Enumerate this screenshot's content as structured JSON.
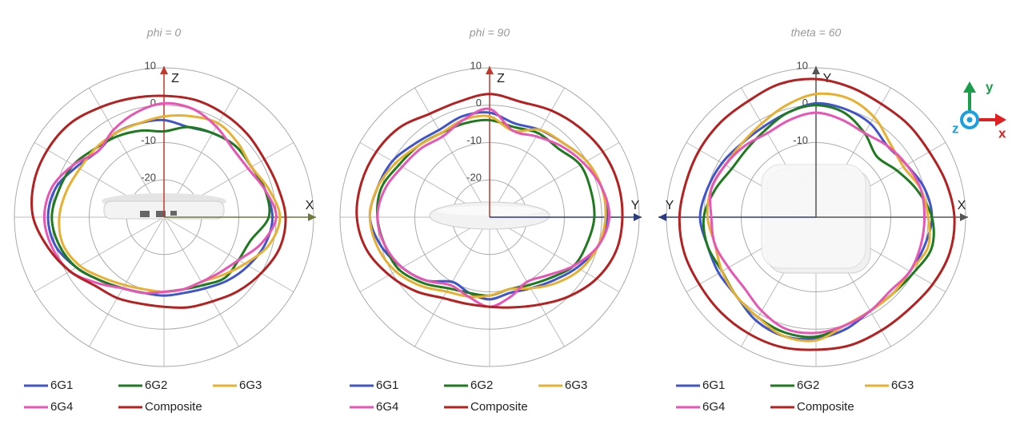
{
  "chart_data": [
    {
      "type": "polar",
      "title": "phi = 0",
      "angles": [
        0,
        15,
        30,
        45,
        60,
        75,
        90,
        105,
        120,
        135,
        150,
        165,
        180,
        195,
        210,
        225,
        240,
        255,
        270,
        285,
        300,
        315,
        330,
        345
      ],
      "rlim": [
        -30,
        10
      ],
      "rticks": [
        -30,
        -20,
        -10,
        0,
        10
      ],
      "grid": true,
      "axes": [
        {
          "label": "Z",
          "direction": "up",
          "color": "#c0392b"
        },
        {
          "label": "X",
          "direction": "right",
          "color": "#6b7a3a"
        }
      ],
      "series": [
        {
          "name": "6G1",
          "color": "#4055cc",
          "values": [
            -4,
            -5,
            -4,
            -3,
            -3,
            -2,
            -1,
            -2,
            -4,
            -6,
            -8,
            -9,
            -9,
            -9,
            -8,
            -6,
            -3,
            0,
            1,
            0,
            -3,
            -5,
            -4,
            -4
          ]
        },
        {
          "name": "6G2",
          "color": "#1e7a1e",
          "values": [
            -7,
            -5,
            -4,
            -3,
            -3,
            -2,
            -2,
            -6,
            -7,
            -7,
            -9,
            -10,
            -10,
            -9,
            -8,
            -6,
            -3,
            -1,
            0,
            -1,
            -2,
            -4,
            -5,
            -6
          ]
        },
        {
          "name": "6G3",
          "color": "#e8b030",
          "values": [
            -3,
            -2,
            -1,
            -2,
            -3,
            -1,
            1,
            -1,
            -5,
            -8,
            -10,
            -10,
            -10,
            -10,
            -9,
            -7,
            -4,
            -2,
            -2,
            -3,
            -4,
            -4,
            -4,
            -4
          ]
        },
        {
          "name": "6G4",
          "color": "#e855b5",
          "values": [
            0.5,
            0,
            -2,
            -4,
            -4,
            -2,
            0,
            -3,
            -7,
            -9,
            -10,
            -10,
            -10,
            -9,
            -8,
            -5,
            -1,
            1,
            2,
            1,
            -2,
            -5,
            -3,
            -1
          ]
        },
        {
          "name": "Composite",
          "color": "#b52020",
          "values": [
            2.5,
            2.5,
            2,
            1.5,
            1,
            1.5,
            2.5,
            2,
            0,
            -2,
            -4,
            -5,
            -6,
            -6,
            -5,
            -4,
            -1,
            2,
            5,
            6,
            6,
            5.5,
            4,
            3
          ]
        }
      ]
    },
    {
      "type": "polar",
      "title": "phi = 90",
      "angles": [
        0,
        15,
        30,
        45,
        60,
        75,
        90,
        105,
        120,
        135,
        150,
        165,
        180,
        195,
        210,
        225,
        240,
        255,
        270,
        285,
        300,
        315,
        330,
        345
      ],
      "rlim": [
        -30,
        10
      ],
      "rticks": [
        -30,
        -20,
        -10,
        0,
        10
      ],
      "grid": true,
      "axes": [
        {
          "label": "Z",
          "direction": "up",
          "color": "#c0392b"
        },
        {
          "label": "Y",
          "direction": "right",
          "color": "#2b3b80"
        }
      ],
      "series": [
        {
          "name": "6G1",
          "color": "#4055cc",
          "values": [
            -2,
            -4,
            -3,
            -2,
            0,
            1,
            1.5,
            0,
            -3,
            -6,
            -8,
            -9,
            -8,
            -9,
            -10,
            -6,
            -3,
            0,
            2,
            1,
            0,
            -2,
            -3,
            -2
          ]
        },
        {
          "name": "6G2",
          "color": "#1e7a1e",
          "values": [
            -4,
            -5,
            -4,
            -4,
            -2,
            -2,
            -2,
            -3,
            -4,
            -7,
            -9,
            -10,
            -9,
            -9,
            -8,
            -5,
            -2,
            -1,
            0,
            0,
            -2,
            -3,
            -4,
            -4
          ]
        },
        {
          "name": "6G3",
          "color": "#e8b030",
          "values": [
            -3,
            -6,
            -3,
            -2,
            0,
            1,
            1,
            0,
            -2,
            -5,
            -8,
            -10,
            -9,
            -8,
            -7,
            -4,
            -1,
            1,
            2,
            1,
            -1,
            -3,
            -4,
            -3
          ]
        },
        {
          "name": "6G4",
          "color": "#e855b5",
          "values": [
            -1,
            -6,
            -5,
            -3,
            -1,
            1,
            2,
            0,
            -4,
            -8,
            -10,
            -8,
            -6,
            -8,
            -9,
            -6,
            -3,
            -1,
            0,
            -1,
            -3,
            -4,
            -5,
            -3
          ]
        },
        {
          "name": "Composite",
          "color": "#b52020",
          "values": [
            3,
            2,
            3,
            4,
            5,
            5.5,
            5.5,
            5,
            3,
            0,
            -3,
            -5,
            -6,
            -6,
            -5,
            -2,
            1,
            4,
            5.5,
            5.5,
            5,
            4,
            2,
            2
          ]
        }
      ]
    },
    {
      "type": "polar",
      "title": "theta = 60",
      "angles": [
        0,
        15,
        30,
        45,
        60,
        75,
        90,
        105,
        120,
        135,
        150,
        165,
        180,
        195,
        210,
        225,
        240,
        255,
        270,
        285,
        300,
        315,
        330,
        345
      ],
      "rlim": [
        -30,
        10
      ],
      "rticks": [
        -30,
        -20,
        -10,
        0,
        10
      ],
      "grid": true,
      "axes": [
        {
          "label": "Y",
          "direction": "up",
          "color": "#555555"
        },
        {
          "label": "X",
          "direction": "right",
          "color": "#555555"
        },
        {
          "label": "Y",
          "direction": "left",
          "color": "#2b3b80"
        }
      ],
      "series": [
        {
          "name": "6G1",
          "color": "#4055cc",
          "values": [
            0.5,
            0,
            -1,
            -3,
            -2,
            0,
            1,
            0,
            -1,
            -1,
            -1,
            1,
            2.5,
            3,
            2,
            0,
            0,
            0,
            1,
            0,
            -1,
            -2,
            -2,
            -1
          ]
        },
        {
          "name": "6G2",
          "color": "#1e7a1e",
          "values": [
            0,
            -1,
            -4,
            -7,
            -5,
            -2,
            1,
            2,
            0,
            -1,
            -1,
            0,
            2,
            2,
            1,
            0,
            -1,
            0,
            0,
            -2,
            -4,
            -4,
            -3,
            -1
          ]
        },
        {
          "name": "6G3",
          "color": "#e8b030",
          "values": [
            3,
            3,
            1,
            -2,
            -3,
            -1,
            0,
            1,
            -1,
            -1,
            -1,
            0,
            3,
            3,
            1,
            0,
            -1,
            -2,
            -1,
            -1,
            -2,
            -2,
            -1,
            1
          ]
        },
        {
          "name": "6G4",
          "color": "#e855b5",
          "values": [
            -2,
            -3,
            -4,
            -3,
            -2,
            -1,
            -1,
            -1,
            -1,
            -2,
            -1,
            0,
            1,
            1,
            -1,
            -3,
            -3,
            -2,
            -2,
            -1,
            -2,
            -3,
            -4,
            -3
          ]
        },
        {
          "name": "Composite",
          "color": "#b52020",
          "values": [
            7,
            6,
            5,
            5,
            5,
            6,
            7,
            7,
            6,
            5,
            5,
            5.5,
            5.5,
            6,
            6,
            6,
            6,
            6.5,
            6.5,
            6,
            6,
            6,
            6,
            7
          ]
        }
      ]
    }
  ],
  "coordinate_icon": {
    "y": "y",
    "z": "z",
    "x": "x"
  }
}
